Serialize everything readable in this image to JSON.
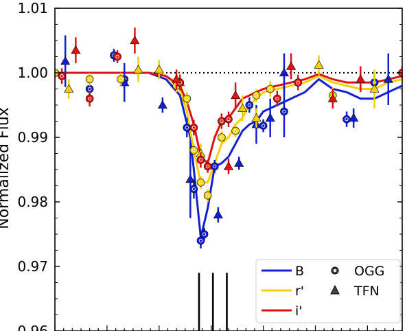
{
  "chart_data": {
    "type": "scatter",
    "ylabel": "Normalized Flux",
    "xlabel": "",
    "yticks": [
      "0.96",
      "0.97",
      "0.98",
      "0.99",
      "1.00",
      "1.01"
    ],
    "ylim": [
      0.96,
      1.01
    ],
    "xlim": [
      0,
      100
    ],
    "grid": false,
    "reference_line": {
      "y": 1.0,
      "style": "dotted"
    },
    "event_markers_x": [
      41.5,
      45.5,
      49.5
    ],
    "legend": {
      "placement": "bottom-right",
      "bands": [
        {
          "name": "B",
          "color": "#1020d0"
        },
        {
          "name": "r'",
          "color": "#f5d000"
        },
        {
          "name": "i'",
          "color": "#e01010"
        }
      ],
      "observatories": [
        {
          "name": "OGG",
          "marker": "circle"
        },
        {
          "name": "TFN",
          "marker": "triangle"
        }
      ]
    },
    "models": [
      {
        "name": "B",
        "color": "#1020d0",
        "x": [
          0,
          10,
          20,
          27,
          32,
          36,
          39,
          40,
          42,
          44,
          46,
          48,
          50,
          52,
          54,
          56,
          58,
          60,
          64,
          68,
          72,
          76,
          80,
          84,
          88,
          92,
          96,
          100
        ],
        "y": [
          1.0,
          1.0,
          1.0,
          1.0,
          0.999,
          0.9965,
          0.99,
          0.985,
          0.9745,
          0.979,
          0.9855,
          0.986,
          0.987,
          0.989,
          0.991,
          0.992,
          0.9925,
          0.994,
          0.995,
          0.996,
          0.997,
          0.999,
          0.9975,
          0.997,
          0.996,
          0.996,
          0.997,
          0.998
        ]
      },
      {
        "name": "r'",
        "color": "#f5d000",
        "x": [
          0,
          10,
          20,
          27,
          32,
          36,
          38,
          40,
          42,
          44,
          46,
          48,
          50,
          52,
          54,
          56,
          58,
          60,
          64,
          68,
          72,
          76,
          80,
          84,
          88,
          92,
          96,
          100
        ],
        "y": [
          1.0,
          1.0,
          1.0,
          1.0,
          0.9995,
          0.9975,
          0.994,
          0.988,
          0.983,
          0.983,
          0.986,
          0.989,
          0.99,
          0.992,
          0.993,
          0.995,
          0.996,
          0.997,
          0.9975,
          0.998,
          0.9985,
          0.9995,
          0.9985,
          0.998,
          0.9975,
          0.9975,
          0.9985,
          0.999
        ]
      },
      {
        "name": "i'",
        "color": "#e01010",
        "x": [
          0,
          10,
          20,
          27,
          32,
          36,
          38,
          40,
          42,
          44,
          46,
          48,
          50,
          52,
          54,
          56,
          58,
          60,
          64,
          68,
          72,
          76,
          80,
          84,
          88,
          92,
          96,
          100
        ],
        "y": [
          1.0,
          1.0,
          1.0,
          1.0,
          0.9995,
          0.998,
          0.9955,
          0.992,
          0.987,
          0.986,
          0.99,
          0.9925,
          0.993,
          0.9945,
          0.996,
          0.9965,
          0.997,
          0.9975,
          0.998,
          0.9985,
          0.999,
          0.9998,
          0.999,
          0.9985,
          0.9985,
          0.9985,
          0.999,
          0.9995
        ]
      }
    ],
    "points": [
      {
        "band": "B",
        "obs": "OGG",
        "x": 0,
        "y": 1.0,
        "err": 0.0
      },
      {
        "band": "B",
        "obs": "OGG",
        "x": 10,
        "y": 0.9975,
        "err": 0.0012
      },
      {
        "band": "B",
        "obs": "OGG",
        "x": 17,
        "y": 1.0027,
        "err": 0.001
      },
      {
        "band": "B",
        "obs": "OGG",
        "x": 20,
        "y": 0.999,
        "err": 0.001
      },
      {
        "band": "B",
        "obs": "OGG",
        "x": 38,
        "y": 0.9915,
        "err": 0.0015
      },
      {
        "band": "B",
        "obs": "OGG",
        "x": 40,
        "y": 0.982,
        "err": 0.0015
      },
      {
        "band": "B",
        "obs": "OGG",
        "x": 42,
        "y": 0.974,
        "err": 0.0012
      },
      {
        "band": "B",
        "obs": "OGG",
        "x": 43,
        "y": 0.975,
        "err": 0.001
      },
      {
        "band": "B",
        "obs": "OGG",
        "x": 46,
        "y": 0.9855,
        "err": 0.001
      },
      {
        "band": "B",
        "obs": "OGG",
        "x": 56,
        "y": 0.995,
        "err": 0.0012
      },
      {
        "band": "B",
        "obs": "OGG",
        "x": 60,
        "y": 0.9918,
        "err": 0.001
      },
      {
        "band": "B",
        "obs": "OGG",
        "x": 66,
        "y": 0.994,
        "err": 0.004
      },
      {
        "band": "B",
        "obs": "OGG",
        "x": 84,
        "y": 0.9928,
        "err": 0.0012
      },
      {
        "band": "B",
        "obs": "OGG",
        "x": 92,
        "y": 0.9985,
        "err": 0.0015
      },
      {
        "band": "B",
        "obs": "TFN",
        "x": 3,
        "y": 1.0018,
        "err": 0.004
      },
      {
        "band": "B",
        "obs": "TFN",
        "x": 20,
        "y": 0.9985,
        "err": 0.003
      },
      {
        "band": "B",
        "obs": "TFN",
        "x": 31,
        "y": 0.995,
        "err": 0.0012
      },
      {
        "band": "B",
        "obs": "TFN",
        "x": 39,
        "y": 0.9835,
        "err": 0.006
      },
      {
        "band": "B",
        "obs": "TFN",
        "x": 47,
        "y": 0.978,
        "err": 0.0012
      },
      {
        "band": "B",
        "obs": "TFN",
        "x": 53,
        "y": 0.986,
        "err": 0.001
      },
      {
        "band": "B",
        "obs": "TFN",
        "x": 58,
        "y": 0.992,
        "err": 0.003
      },
      {
        "band": "B",
        "obs": "TFN",
        "x": 62,
        "y": 0.993,
        "err": 0.003
      },
      {
        "band": "B",
        "obs": "TFN",
        "x": 66,
        "y": 1.0,
        "err": 0.003
      },
      {
        "band": "B",
        "obs": "TFN",
        "x": 86,
        "y": 0.993,
        "err": 0.0015
      },
      {
        "band": "B",
        "obs": "TFN",
        "x": 96,
        "y": 0.999,
        "err": 0.004
      },
      {
        "band": "r'",
        "obs": "OGG",
        "x": 0,
        "y": 1.0,
        "err": 0.0
      },
      {
        "band": "r'",
        "obs": "OGG",
        "x": 10,
        "y": 0.999,
        "err": 0.001
      },
      {
        "band": "r'",
        "obs": "OGG",
        "x": 19,
        "y": 0.999,
        "err": 0.001
      },
      {
        "band": "r'",
        "obs": "OGG",
        "x": 35,
        "y": 0.998,
        "err": 0.001
      },
      {
        "band": "r'",
        "obs": "OGG",
        "x": 38,
        "y": 0.996,
        "err": 0.001
      },
      {
        "band": "r'",
        "obs": "OGG",
        "x": 40,
        "y": 0.988,
        "err": 0.001
      },
      {
        "band": "r'",
        "obs": "OGG",
        "x": 42,
        "y": 0.983,
        "err": 0.001
      },
      {
        "band": "r'",
        "obs": "OGG",
        "x": 44,
        "y": 0.981,
        "err": 0.001
      },
      {
        "band": "r'",
        "obs": "OGG",
        "x": 48,
        "y": 0.99,
        "err": 0.001
      },
      {
        "band": "r'",
        "obs": "OGG",
        "x": 52,
        "y": 0.991,
        "err": 0.001
      },
      {
        "band": "r'",
        "obs": "OGG",
        "x": 58,
        "y": 0.9965,
        "err": 0.001
      },
      {
        "band": "r'",
        "obs": "OGG",
        "x": 62,
        "y": 0.9975,
        "err": 0.0012
      },
      {
        "band": "r'",
        "obs": "OGG",
        "x": 80,
        "y": 0.9965,
        "err": 0.0012
      },
      {
        "band": "r'",
        "obs": "TFN",
        "x": 4,
        "y": 0.9975,
        "err": 0.0015
      },
      {
        "band": "r'",
        "obs": "TFN",
        "x": 24,
        "y": 1.0005,
        "err": 0.002
      },
      {
        "band": "r'",
        "obs": "TFN",
        "x": 30,
        "y": 1.0005,
        "err": 0.0015
      },
      {
        "band": "r'",
        "obs": "TFN",
        "x": 36,
        "y": 0.9985,
        "err": 0.0015
      },
      {
        "band": "r'",
        "obs": "TFN",
        "x": 42,
        "y": 0.9875,
        "err": 0.0015
      },
      {
        "band": "r'",
        "obs": "TFN",
        "x": 54,
        "y": 0.9945,
        "err": 0.002
      },
      {
        "band": "r'",
        "obs": "TFN",
        "x": 58,
        "y": 0.993,
        "err": 0.0015
      },
      {
        "band": "r'",
        "obs": "TFN",
        "x": 76,
        "y": 1.0012,
        "err": 0.0015
      },
      {
        "band": "r'",
        "obs": "TFN",
        "x": 92,
        "y": 0.9975,
        "err": 0.003
      },
      {
        "band": "i'",
        "obs": "OGG",
        "x": 2,
        "y": 0.9995,
        "err": 0.0012
      },
      {
        "band": "i'",
        "obs": "OGG",
        "x": 10,
        "y": 0.996,
        "err": 0.0012
      },
      {
        "band": "i'",
        "obs": "OGG",
        "x": 18,
        "y": 1.0025,
        "err": 0.001
      },
      {
        "band": "i'",
        "obs": "OGG",
        "x": 36,
        "y": 0.9985,
        "err": 0.0012
      },
      {
        "band": "i'",
        "obs": "OGG",
        "x": 40,
        "y": 0.9915,
        "err": 0.0012
      },
      {
        "band": "i'",
        "obs": "OGG",
        "x": 42,
        "y": 0.9865,
        "err": 0.0012
      },
      {
        "band": "i'",
        "obs": "OGG",
        "x": 44,
        "y": 0.9855,
        "err": 0.001
      },
      {
        "band": "i'",
        "obs": "OGG",
        "x": 48,
        "y": 0.9925,
        "err": 0.0012
      },
      {
        "band": "i'",
        "obs": "OGG",
        "x": 50,
        "y": 0.9928,
        "err": 0.0012
      },
      {
        "band": "i'",
        "obs": "OGG",
        "x": 64,
        "y": 0.996,
        "err": 0.0012
      },
      {
        "band": "i'",
        "obs": "OGG",
        "x": 70,
        "y": 0.9985,
        "err": 0.0012
      },
      {
        "band": "i'",
        "obs": "OGG",
        "x": 100,
        "y": 1.0,
        "err": 0.001
      },
      {
        "band": "i'",
        "obs": "TFN",
        "x": 6,
        "y": 1.0035,
        "err": 0.002
      },
      {
        "band": "i'",
        "obs": "TFN",
        "x": 23,
        "y": 1.005,
        "err": 0.002
      },
      {
        "band": "i'",
        "obs": "TFN",
        "x": 35,
        "y": 0.999,
        "err": 0.0015
      },
      {
        "band": "i'",
        "obs": "TFN",
        "x": 50,
        "y": 0.9855,
        "err": 0.0012
      },
      {
        "band": "i'",
        "obs": "TFN",
        "x": 52,
        "y": 0.9965,
        "err": 0.002
      },
      {
        "band": "i'",
        "obs": "TFN",
        "x": 68,
        "y": 1.001,
        "err": 0.002
      },
      {
        "band": "i'",
        "obs": "TFN",
        "x": 80,
        "y": 0.996,
        "err": 0.0015
      },
      {
        "band": "i'",
        "obs": "TFN",
        "x": 88,
        "y": 0.999,
        "err": 0.002
      }
    ]
  }
}
